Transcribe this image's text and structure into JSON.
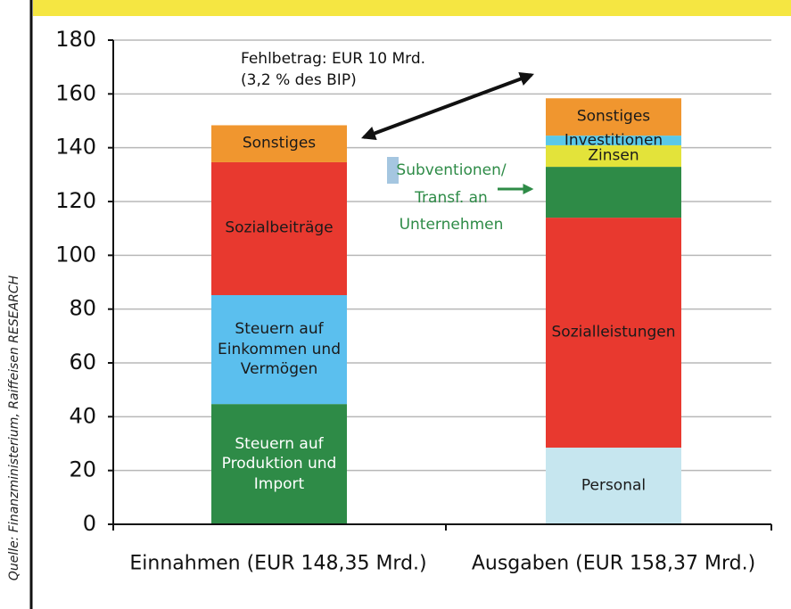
{
  "chart_data": {
    "type": "stacked_bar",
    "source": "Quelle: Finanzministerium, Raiffeisen RESEARCH",
    "annotation": "Fehlbetrag: EUR 10 Mrd.\n(3,2 % des BIP)",
    "categories": [
      "Einnahmen (EUR 148,35 Mrd.)",
      "Ausgaben (EUR 158,37 Mrd.)"
    ],
    "series": [
      {
        "name": "Steuern auf\nProduktion und\nImport",
        "color": "#2e8b47",
        "values": [
          44.7,
          null
        ]
      },
      {
        "name": "Steuern auf\nEinkommen und\nVermögen",
        "color": "#5bbfee",
        "values": [
          40.5,
          null
        ]
      },
      {
        "name": "Sozialbeiträge",
        "color": "#e8392f",
        "values": [
          49.4,
          null
        ]
      },
      {
        "name": "Personal",
        "color": "#c6e6ef",
        "values": [
          null,
          28.5
        ]
      },
      {
        "name": "Sozialleistungen",
        "color": "#e8392f",
        "values": [
          null,
          85.5
        ]
      },
      {
        "name": "Subventionen/\nTransf. an\nUnternehmen",
        "color": "#2e8b47",
        "values": [
          null,
          18.9
        ]
      },
      {
        "name": "Zinsen",
        "color": "#e3e33a",
        "values": [
          null,
          8
        ]
      },
      {
        "name": "Investitionen",
        "color": "#5bc8e8",
        "values": [
          null,
          3.6
        ]
      },
      {
        "name": "Sonstiges",
        "color": "#f0962f",
        "values": [
          13.75,
          13.87
        ]
      }
    ],
    "ylim": [
      0,
      180
    ],
    "yticks": [
      0,
      20,
      40,
      60,
      80,
      100,
      120,
      140,
      160,
      180
    ],
    "grid": true
  }
}
